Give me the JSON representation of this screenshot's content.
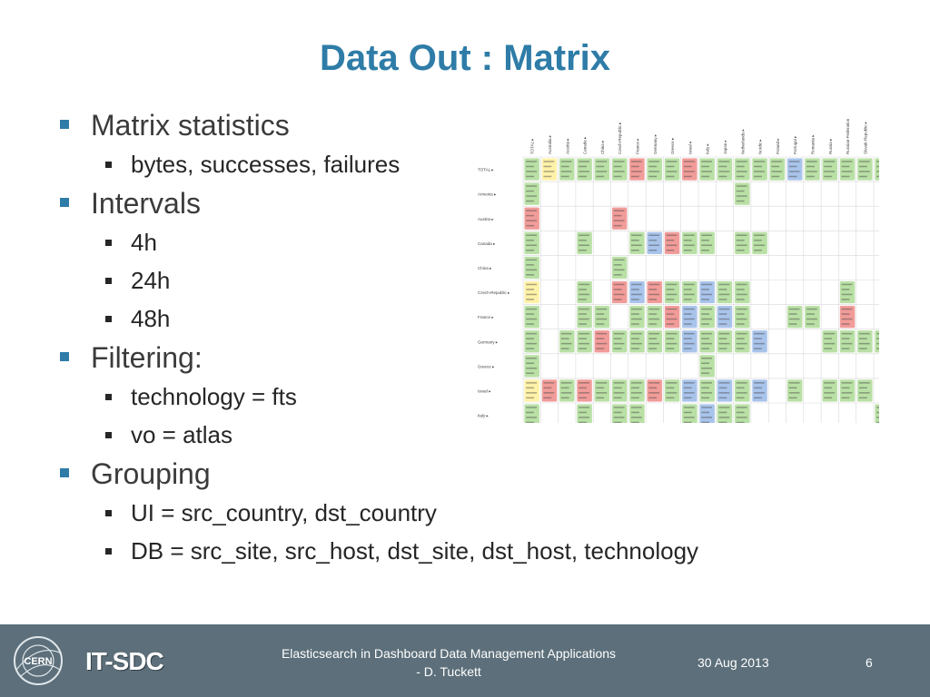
{
  "slide": {
    "title": "Data Out : Matrix",
    "bullets": [
      {
        "level": 1,
        "text": "Matrix statistics"
      },
      {
        "level": 2,
        "text": "bytes, successes, failures"
      },
      {
        "level": 1,
        "text": "Intervals"
      },
      {
        "level": 2,
        "text": "4h"
      },
      {
        "level": 2,
        "text": "24h"
      },
      {
        "level": 2,
        "text": "48h"
      },
      {
        "level": 1,
        "text": "Filtering:"
      },
      {
        "level": 2,
        "text": "technology = fts"
      },
      {
        "level": 2,
        "text": "vo = atlas"
      },
      {
        "level": 1,
        "text": "Grouping"
      },
      {
        "level": 2,
        "text": "UI =  src_country, dst_country"
      },
      {
        "level": 2,
        "text": "DB = src_site, src_host, dst_site, dst_host, technology"
      }
    ]
  },
  "matrix": {
    "columns": [
      "TOTAL",
      "Australia",
      "Austria",
      "Canada",
      "China",
      "Czech-Republic",
      "France",
      "Germany",
      "Greece",
      "Israel",
      "Italy",
      "Japan",
      "Netherlands",
      "Nordic",
      "Poland",
      "Portugal",
      "Romania",
      "Russia",
      "Russian-Federation",
      "Slovak-Republic",
      "South-Africa"
    ],
    "rows": [
      "TOTAL",
      "Armenia",
      "Austria",
      "Canada",
      "China",
      "Czech-Republic",
      "France",
      "Germany",
      "Greece",
      "Israel",
      "Italy"
    ],
    "colors": {
      "green": "#b9e0a5",
      "red": "#f19c99",
      "yellow": "#fff2a8",
      "blue": "#a9c4eb",
      "grid": "#d9d9d9",
      "text": "#444444"
    },
    "cells": [
      "gyggggrggrgggggbggggg",
      "g...........g........",
      "r....r...............",
      "g..g..gbrgg.gg.......",
      "g....g...............",
      "y..g.rbrggbgg.....g..",
      "g..gg.ggrbgbg..gg.r..",
      "g.ggrggggbgggb...gggg",
      "g.........g..........",
      "yrgrgggrgbgbgb.g.ggg.",
      "g..g.gg..gbgg.......g"
    ]
  },
  "footer": {
    "logo_text": "CERN",
    "group": "IT-SDC",
    "center_line1": "Elasticsearch in Dashboard Data Management  Applications",
    "center_line2": "- D. Tuckett",
    "date": "30 Aug 2013",
    "page": "6"
  }
}
